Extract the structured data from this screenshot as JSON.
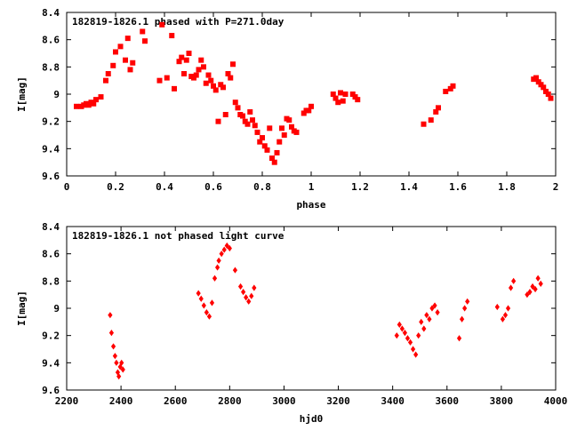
{
  "chart_data": [
    {
      "type": "scatter",
      "title": "182819-1826.1 phased with P=271.0day",
      "xlabel": "phase",
      "ylabel": "I[mag]",
      "xlim": [
        0,
        2
      ],
      "ylim": [
        8.4,
        9.6
      ],
      "y_inverted": true,
      "xticks": [
        "0",
        "0.2",
        "0.4",
        "0.6",
        "0.8",
        "1",
        "1.2",
        "1.4",
        "1.6",
        "1.8",
        "2"
      ],
      "yticks": [
        "8.4",
        "8.6",
        "8.8",
        "9",
        "9.2",
        "9.4",
        "9.6"
      ],
      "grid": false,
      "legend": "none",
      "series": [
        {
          "color": "#ff0000",
          "marker": "filled-square",
          "x": [
            0.04,
            0.06,
            0.07,
            0.08,
            0.09,
            0.1,
            0.11,
            0.12,
            0.14,
            0.16,
            0.17,
            0.19,
            0.2,
            0.22,
            0.24,
            0.25,
            0.26,
            0.27,
            0.31,
            0.32,
            0.38,
            0.39,
            0.41,
            0.43,
            0.44,
            0.46,
            0.47,
            0.48,
            0.49,
            0.5,
            0.51,
            0.52,
            0.53,
            0.54,
            0.55,
            0.56,
            0.57,
            0.58,
            0.59,
            0.6,
            0.61,
            0.62,
            0.63,
            0.64,
            0.65,
            0.66,
            0.67,
            0.68,
            0.69,
            0.7,
            0.71,
            0.72,
            0.73,
            0.74,
            0.75,
            0.76,
            0.77,
            0.78,
            0.79,
            0.8,
            0.81,
            0.82,
            0.83,
            0.84,
            0.85,
            0.86,
            0.87,
            0.88,
            0.89,
            0.9,
            0.91,
            0.92,
            0.93,
            0.94,
            0.97,
            0.98,
            0.99,
            1.0,
            1.09,
            1.1,
            1.11,
            1.12,
            1.13,
            1.14,
            1.17,
            1.18,
            1.19,
            1.46,
            1.49,
            1.51,
            1.52,
            1.55,
            1.57,
            1.58,
            1.91,
            1.92,
            1.93,
            1.94,
            1.95,
            1.96,
            1.97,
            1.98
          ],
          "y": [
            9.09,
            9.09,
            9.08,
            9.07,
            9.08,
            9.06,
            9.07,
            9.04,
            9.02,
            8.9,
            8.85,
            8.79,
            8.69,
            8.65,
            8.75,
            8.59,
            8.82,
            8.77,
            8.54,
            8.61,
            8.9,
            8.49,
            8.88,
            8.57,
            8.96,
            8.76,
            8.73,
            8.85,
            8.75,
            8.7,
            8.87,
            8.88,
            8.86,
            8.82,
            8.75,
            8.8,
            8.92,
            8.86,
            8.9,
            8.94,
            8.97,
            9.2,
            8.93,
            8.95,
            9.15,
            8.85,
            8.88,
            8.78,
            9.06,
            9.1,
            9.15,
            9.16,
            9.2,
            9.22,
            9.13,
            9.19,
            9.23,
            9.28,
            9.35,
            9.32,
            9.38,
            9.41,
            9.25,
            9.47,
            9.5,
            9.43,
            9.35,
            9.25,
            9.3,
            9.18,
            9.19,
            9.24,
            9.27,
            9.28,
            9.14,
            9.12,
            9.12,
            9.09,
            9.0,
            9.03,
            9.06,
            8.99,
            9.05,
            9.0,
            9.0,
            9.02,
            9.04,
            9.22,
            9.19,
            9.13,
            9.1,
            8.98,
            8.96,
            8.94,
            8.89,
            8.88,
            8.91,
            8.93,
            8.95,
            8.98,
            9.0,
            9.03
          ]
        }
      ]
    },
    {
      "type": "scatter",
      "title": "182819-1826.1 not phased light curve",
      "xlabel": "hjd0",
      "ylabel": "I[mag]",
      "xlim": [
        2200,
        4000
      ],
      "ylim": [
        8.4,
        9.6
      ],
      "y_inverted": true,
      "xticks": [
        "2200",
        "2400",
        "2600",
        "2800",
        "3000",
        "3200",
        "3400",
        "3600",
        "3800",
        "4000"
      ],
      "yticks": [
        "8.4",
        "8.6",
        "8.8",
        "9",
        "9.2",
        "9.4",
        "9.6"
      ],
      "grid": false,
      "legend": "none",
      "series": [
        {
          "color": "#ff0000",
          "marker": "filled-diamond",
          "x": [
            2360,
            2365,
            2372,
            2378,
            2383,
            2388,
            2392,
            2397,
            2402,
            2407,
            2685,
            2695,
            2705,
            2715,
            2725,
            2735,
            2745,
            2755,
            2760,
            2770,
            2780,
            2790,
            2800,
            2820,
            2840,
            2850,
            2860,
            2870,
            2880,
            2890,
            3415,
            3425,
            3435,
            3445,
            3455,
            3465,
            3475,
            3485,
            3495,
            3505,
            3515,
            3525,
            3535,
            3545,
            3555,
            3565,
            3645,
            3655,
            3665,
            3675,
            3785,
            3805,
            3815,
            3825,
            3835,
            3845,
            3895,
            3905,
            3915,
            3925,
            3935,
            3945
          ],
          "y": [
            9.05,
            9.18,
            9.28,
            9.35,
            9.4,
            9.47,
            9.5,
            9.43,
            9.4,
            9.45,
            8.89,
            8.93,
            8.98,
            9.03,
            9.06,
            8.96,
            8.78,
            8.7,
            8.65,
            8.6,
            8.57,
            8.54,
            8.56,
            8.72,
            8.84,
            8.88,
            8.92,
            8.95,
            8.91,
            8.85,
            9.2,
            9.12,
            9.15,
            9.18,
            9.22,
            9.25,
            9.3,
            9.34,
            9.2,
            9.1,
            9.15,
            9.05,
            9.08,
            9.0,
            8.98,
            9.03,
            9.22,
            9.08,
            9.0,
            8.95,
            8.99,
            9.08,
            9.05,
            9.0,
            8.85,
            8.8,
            8.9,
            8.88,
            8.84,
            8.86,
            8.78,
            8.82
          ]
        }
      ]
    }
  ]
}
